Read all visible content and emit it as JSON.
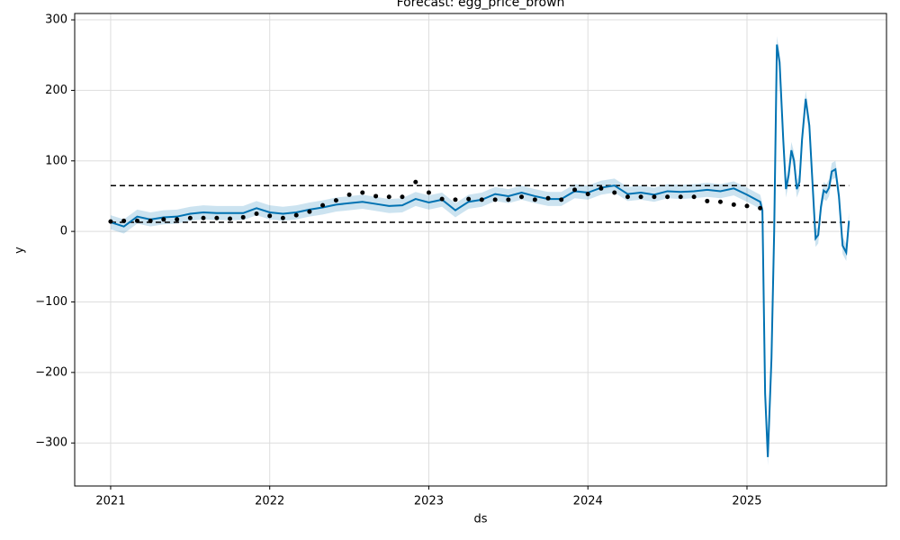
{
  "chart_data": {
    "type": "forecast",
    "title": "Forecast: egg_price_brown",
    "x_label": "ds",
    "y_label": "y",
    "xlim": [
      2020.774,
      2025.877
    ],
    "ylim": [
      -361,
      309
    ],
    "xticks": [
      2021,
      2022,
      2023,
      2024,
      2025
    ],
    "yticks": [
      {
        "value": -300,
        "label": "−300"
      },
      {
        "value": -200,
        "label": "−200"
      },
      {
        "value": -100,
        "label": "−100"
      },
      0,
      100,
      200,
      300
    ],
    "grid": true,
    "line_color": "#0072B2",
    "point_color": "#000000",
    "hlines": [
      65,
      13
    ],
    "actual": {
      "x": [
        2021,
        2021.083,
        2021.167,
        2021.25,
        2021.333,
        2021.417,
        2021.5,
        2021.583,
        2021.667,
        2021.75,
        2021.833,
        2021.917,
        2022,
        2022.083,
        2022.167,
        2022.25,
        2022.333,
        2022.417,
        2022.5,
        2022.583,
        2022.667,
        2022.75,
        2022.833,
        2022.917,
        2023,
        2023.083,
        2023.167,
        2023.25,
        2023.333,
        2023.417,
        2023.5,
        2023.583,
        2023.667,
        2023.75,
        2023.833,
        2023.917,
        2024,
        2024.083,
        2024.167,
        2024.25,
        2024.333,
        2024.417,
        2024.5,
        2024.583,
        2024.667,
        2024.75,
        2024.833,
        2024.917,
        2025,
        2025.083
      ],
      "values": [
        14,
        15,
        15,
        15,
        17,
        17,
        19,
        19,
        19,
        18,
        20,
        25,
        22,
        19,
        23,
        28,
        37,
        44,
        52,
        55,
        50,
        49,
        49,
        70,
        55,
        46,
        45,
        46,
        45,
        45,
        45,
        49,
        45,
        47,
        45,
        59,
        53,
        61,
        55,
        49,
        49,
        49,
        49,
        49,
        49,
        43,
        42,
        38,
        36,
        33
      ]
    },
    "forecast": {
      "x": [
        2021,
        2021.083,
        2021.167,
        2021.25,
        2021.333,
        2021.417,
        2021.5,
        2021.583,
        2021.667,
        2021.75,
        2021.833,
        2021.917,
        2022,
        2022.083,
        2022.167,
        2022.25,
        2022.333,
        2022.417,
        2022.5,
        2022.583,
        2022.667,
        2022.75,
        2022.833,
        2022.917,
        2023,
        2023.083,
        2023.167,
        2023.25,
        2023.333,
        2023.417,
        2023.5,
        2023.583,
        2023.667,
        2023.75,
        2023.833,
        2023.917,
        2024,
        2024.083,
        2024.167,
        2024.25,
        2024.333,
        2024.417,
        2024.5,
        2024.583,
        2024.667,
        2024.75,
        2024.833,
        2024.917,
        2025,
        2025.083,
        2025.097,
        2025.114,
        2025.131,
        2025.154,
        2025.171,
        2025.188,
        2025.205,
        2025.228,
        2025.245,
        2025.262,
        2025.279,
        2025.296,
        2025.313,
        2025.33,
        2025.346,
        2025.369,
        2025.392,
        2025.414,
        2025.431,
        2025.448,
        2025.465,
        2025.482,
        2025.499,
        2025.516,
        2025.533,
        2025.556,
        2025.578,
        2025.601,
        2025.624,
        2025.641
      ],
      "yhat": [
        13,
        7,
        21,
        17,
        20,
        21,
        25,
        27,
        26,
        26,
        26,
        33,
        27,
        25,
        27,
        31,
        34,
        38,
        40,
        42,
        39,
        36,
        37,
        46,
        41,
        45,
        30,
        42,
        45,
        53,
        50,
        55,
        50,
        46,
        46,
        57,
        55,
        62,
        65,
        53,
        55,
        52,
        57,
        56,
        57,
        59,
        57,
        61,
        52,
        42,
        30,
        -230,
        -320,
        -180,
        0,
        265,
        240,
        130,
        60,
        80,
        115,
        100,
        60,
        70,
        130,
        188,
        150,
        60,
        -10,
        -5,
        35,
        58,
        55,
        62,
        85,
        88,
        50,
        -20,
        -30,
        15
      ],
      "lower": [
        3,
        -3,
        11,
        7,
        10,
        11,
        15,
        17,
        16,
        16,
        16,
        23,
        17,
        15,
        17,
        21,
        24,
        28,
        30,
        32,
        29,
        26,
        27,
        36,
        31,
        35,
        20,
        32,
        35,
        43,
        40,
        45,
        40,
        36,
        36,
        47,
        45,
        52,
        55,
        43,
        45,
        42,
        47,
        46,
        47,
        49,
        47,
        51,
        42,
        32,
        20,
        -242,
        -332,
        -192,
        -12,
        253,
        228,
        118,
        48,
        68,
        103,
        88,
        48,
        58,
        118,
        176,
        138,
        48,
        -22,
        -17,
        23,
        46,
        43,
        50,
        73,
        76,
        38,
        -32,
        -42,
        3
      ],
      "upper": [
        23,
        17,
        31,
        27,
        30,
        31,
        35,
        37,
        36,
        36,
        36,
        43,
        37,
        35,
        37,
        41,
        44,
        48,
        50,
        52,
        49,
        46,
        47,
        56,
        51,
        55,
        40,
        52,
        55,
        63,
        60,
        65,
        60,
        56,
        56,
        67,
        65,
        72,
        75,
        63,
        65,
        62,
        67,
        66,
        67,
        69,
        67,
        71,
        62,
        52,
        40,
        -218,
        -308,
        -168,
        12,
        277,
        252,
        142,
        72,
        92,
        127,
        112,
        72,
        82,
        142,
        200,
        162,
        72,
        2,
        7,
        47,
        70,
        67,
        74,
        97,
        100,
        62,
        -8,
        -18,
        27
      ]
    }
  }
}
